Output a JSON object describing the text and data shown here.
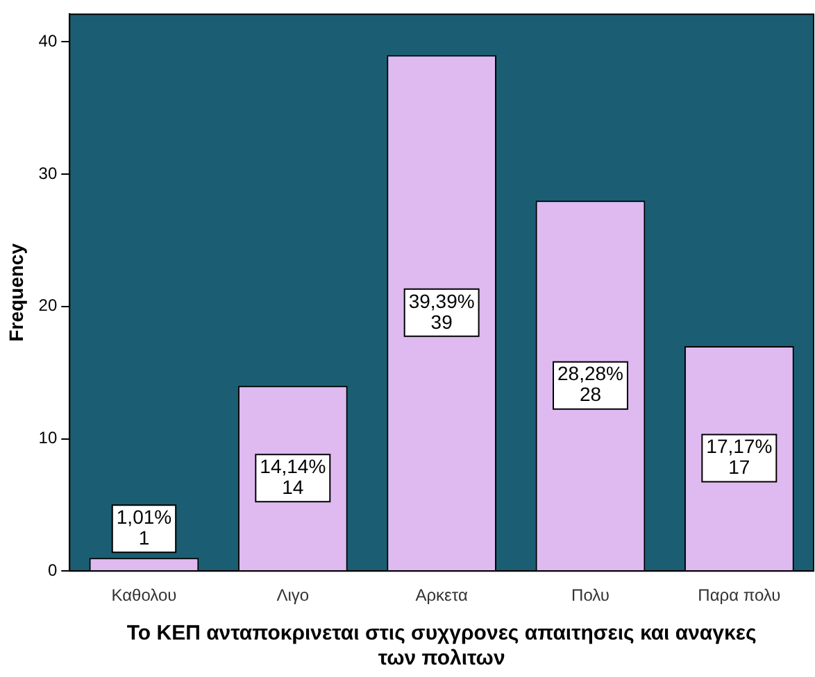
{
  "chart_data": {
    "type": "bar",
    "xlabel": "Το ΚΕΠ ανταποκρινεται στις συχγρονες απαιτησεις και αναγκες των πολιτων",
    "ylabel": "Frequency",
    "categories": [
      "Καθολου",
      "Λιγο",
      "Αρκετα",
      "Πολυ",
      "Παρα πολυ"
    ],
    "values": [
      1,
      14,
      39,
      28,
      17
    ],
    "value_labels": [
      "1,01%\n1",
      "14,14%\n14",
      "39,39%\n39",
      "28,28%\n28",
      "17,17%\n17"
    ],
    "color": "#dfbaf0",
    "ylim": [
      0,
      42.1
    ],
    "yticks": [
      0,
      10,
      20,
      30,
      40
    ],
    "grid": false,
    "legend": false
  }
}
